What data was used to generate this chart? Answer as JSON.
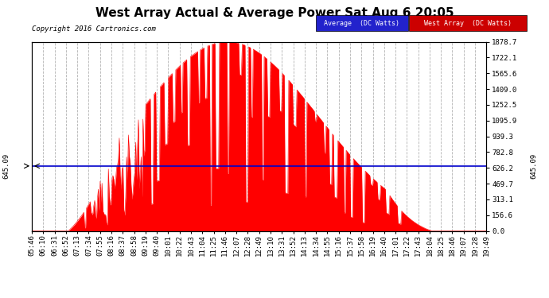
{
  "title": "West Array Actual & Average Power Sat Aug 6 20:05",
  "copyright": "Copyright 2016 Cartronics.com",
  "average_value": 645.09,
  "y_max": 1878.7,
  "y_ticks": [
    0.0,
    156.6,
    313.1,
    469.7,
    626.2,
    782.8,
    939.3,
    1095.9,
    1252.5,
    1409.0,
    1565.6,
    1722.1,
    1878.7
  ],
  "legend_avg_label": "Average  (DC Watts)",
  "legend_west_label": "West Array  (DC Watts)",
  "bg_color": "#ffffff",
  "plot_bg_color": "#ffffff",
  "grid_color": "#aaaaaa",
  "fill_color": "#ff0000",
  "avg_line_color": "#0000cc",
  "x_labels": [
    "05:46",
    "06:10",
    "06:31",
    "06:52",
    "07:13",
    "07:34",
    "07:55",
    "08:16",
    "08:37",
    "08:58",
    "09:19",
    "09:40",
    "10:01",
    "10:22",
    "10:43",
    "11:04",
    "11:25",
    "11:46",
    "12:07",
    "12:28",
    "12:49",
    "13:10",
    "13:31",
    "13:52",
    "14:13",
    "14:34",
    "14:55",
    "15:16",
    "15:37",
    "15:58",
    "16:19",
    "16:40",
    "17:01",
    "17:22",
    "17:43",
    "18:04",
    "18:25",
    "18:46",
    "19:07",
    "19:28",
    "19:49"
  ],
  "title_fontsize": 11,
  "axis_fontsize": 6.5,
  "copyright_fontsize": 6.5,
  "legend_fontsize": 6
}
